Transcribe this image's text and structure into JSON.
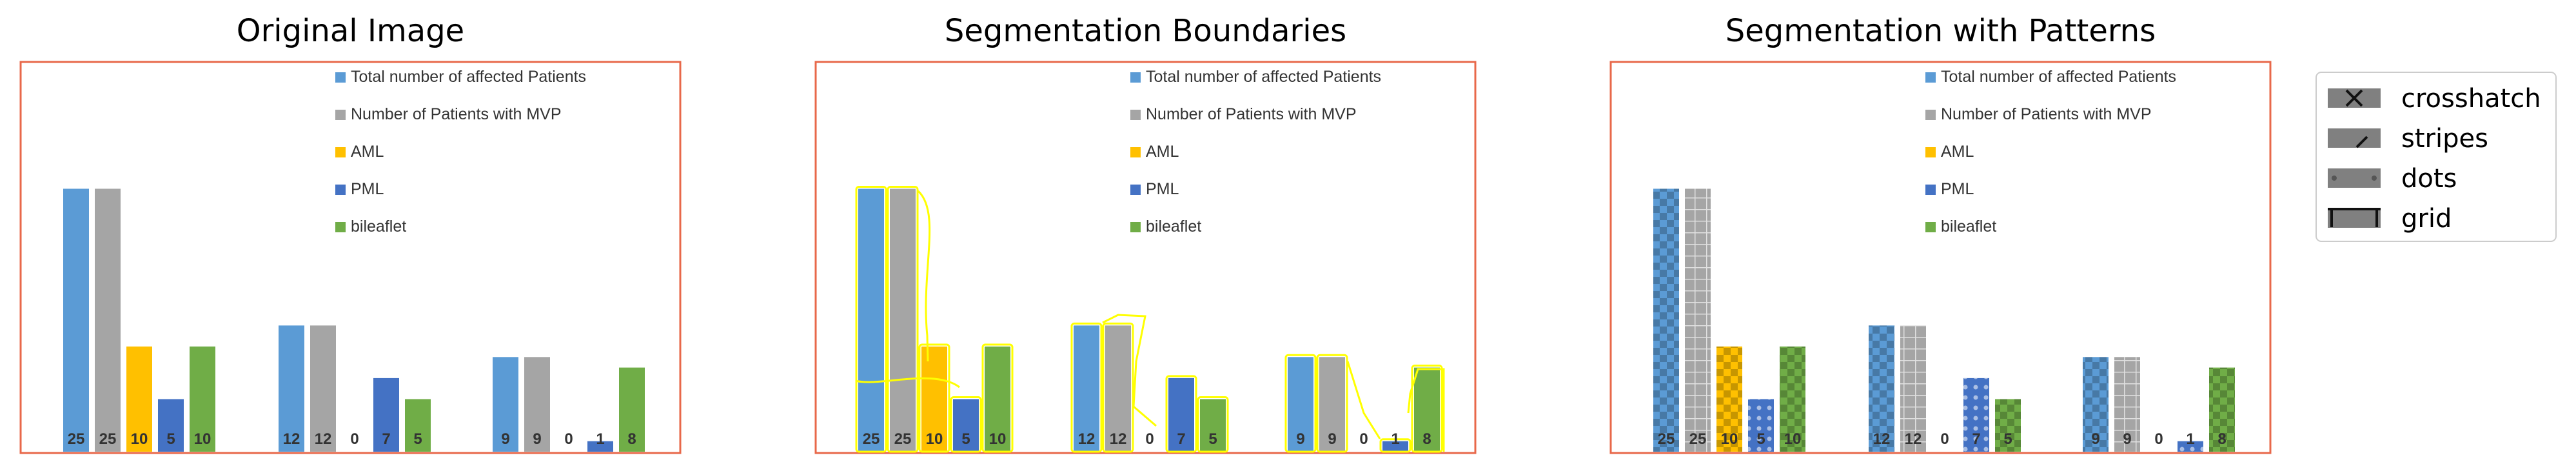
{
  "panels": [
    {
      "title": "Original Image",
      "variant": "original"
    },
    {
      "title": "Segmentation Boundaries",
      "variant": "boundaries"
    },
    {
      "title": "Segmentation with Patterns",
      "variant": "patterns"
    }
  ],
  "pattern_legend": {
    "items": [
      {
        "label": "crosshatch",
        "pattern": "crosshatch"
      },
      {
        "label": "stripes",
        "pattern": "stripes"
      },
      {
        "label": "dots",
        "pattern": "dots"
      },
      {
        "label": "grid",
        "pattern": "grid"
      }
    ]
  },
  "colors": {
    "frame": "#e8684a",
    "boundary": "#ffff00",
    "legend_swatch": "#808080"
  },
  "chart_data": {
    "type": "bar",
    "groups": 3,
    "ylim": [
      0,
      28
    ],
    "series": [
      {
        "name": "Total number of affected Patients",
        "color": "#5b9bd5",
        "values": [
          25,
          12,
          9
        ]
      },
      {
        "name": "Number of Patients with MVP",
        "color": "#a5a5a5",
        "values": [
          25,
          12,
          9
        ]
      },
      {
        "name": "AML",
        "color": "#ffc000",
        "values": [
          10,
          0,
          0
        ]
      },
      {
        "name": "PML",
        "color": "#4472c4",
        "values": [
          5,
          7,
          1
        ]
      },
      {
        "name": "bileaflet",
        "color": "#70ad47",
        "values": [
          10,
          5,
          8
        ]
      }
    ],
    "value_labels": [
      [
        "25",
        "25",
        "10",
        "5",
        "10"
      ],
      [
        "12",
        "12",
        "0",
        "7",
        "5"
      ],
      [
        "9",
        "9",
        "0",
        "1",
        "8"
      ]
    ],
    "legend_position": "top-right"
  }
}
